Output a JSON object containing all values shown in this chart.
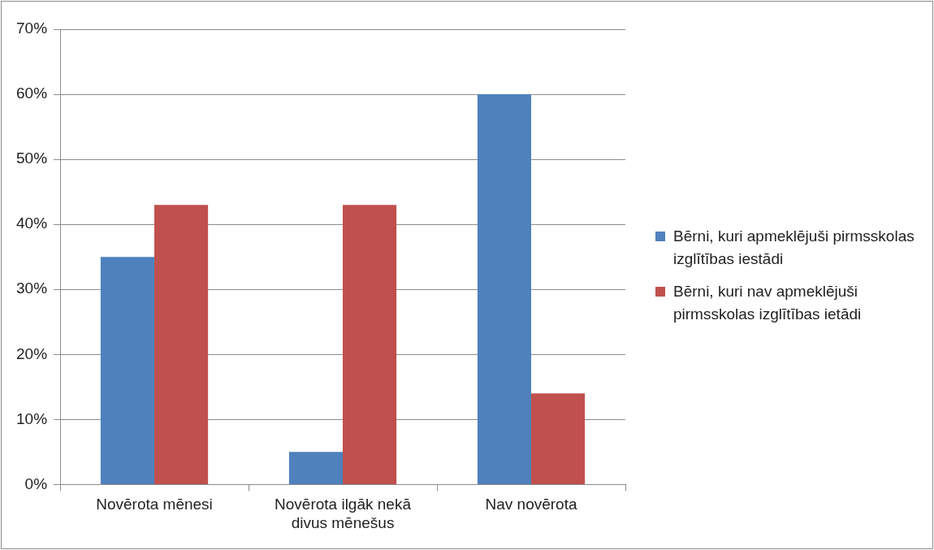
{
  "chart_data": {
    "type": "bar",
    "categories": [
      "Novērota mēnesi",
      "Novērota ilgāk nekā divus mēnešus",
      "Nav novērota"
    ],
    "series": [
      {
        "name": "Bērni, kuri apmeklējuši pirmsskolas izglītības iestādi",
        "color": "#4f81bd",
        "values": [
          35,
          5,
          60
        ]
      },
      {
        "name": "Bērni, kuri nav apmeklējuši pirmsskolas izglītības ietādi",
        "color": "#c0504d",
        "values": [
          43,
          43,
          14
        ]
      }
    ],
    "ylim": [
      0,
      70
    ],
    "yticks": [
      {
        "value": 0,
        "label": "0%"
      },
      {
        "value": 10,
        "label": "10%"
      },
      {
        "value": 20,
        "label": "20%"
      },
      {
        "value": 30,
        "label": "30%"
      },
      {
        "value": 40,
        "label": "40%"
      },
      {
        "value": 50,
        "label": "50%"
      },
      {
        "value": 60,
        "label": "60%"
      },
      {
        "value": 70,
        "label": "70%"
      }
    ],
    "grid": "y",
    "legend": "right"
  }
}
